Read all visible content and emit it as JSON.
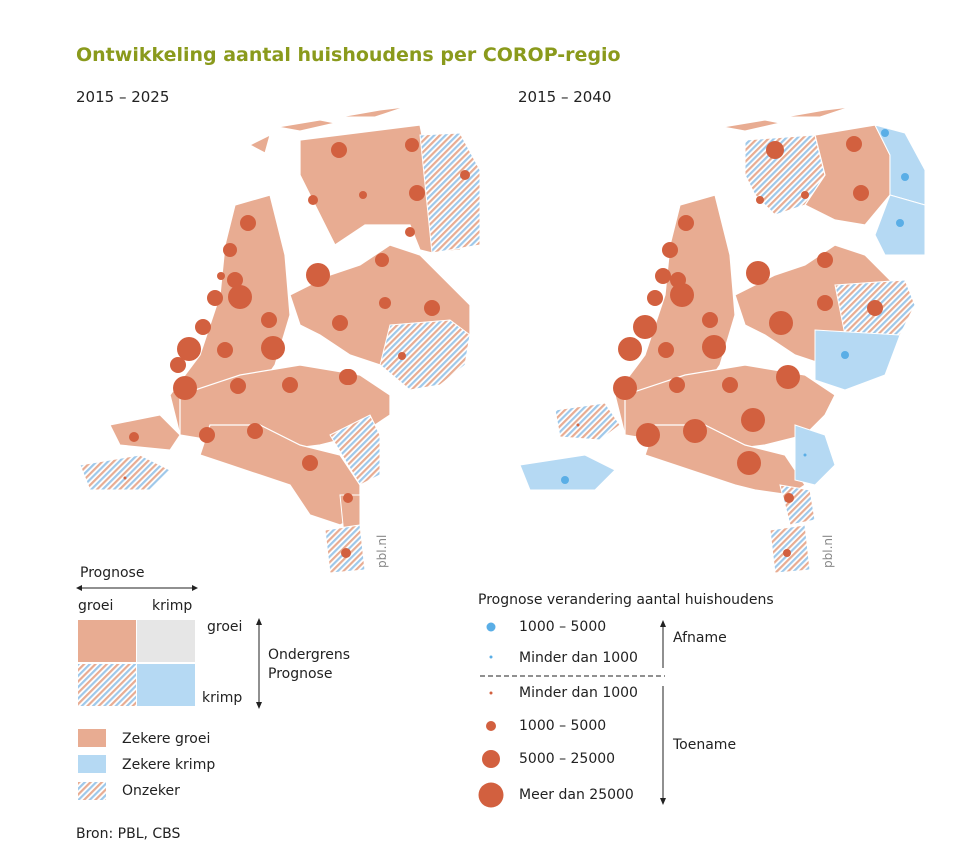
{
  "title": "Ontwikkeling aantal huishoudens per COROP-regio",
  "maps": [
    {
      "period": "2015 – 2025",
      "credit": "pbl.nl"
    },
    {
      "period": "2015 – 2040",
      "credit": "pbl.nl"
    }
  ],
  "colors": {
    "growth": "#e8ac92",
    "shrink": "#b5d9f3",
    "neutral": "#e6e6e6",
    "dot_increase": "#d2603f",
    "dot_decrease": "#5aaee6"
  },
  "legend_matrix": {
    "axis_label": "Prognose",
    "col_left": "groei",
    "col_right": "krimp",
    "row_top": "groei",
    "row_bottom": "krimp",
    "side_label_line1": "Ondergrens",
    "side_label_line2": "Prognose"
  },
  "legend_classes": [
    {
      "label": "Zekere groei",
      "style": "growth"
    },
    {
      "label": "Zekere krimp",
      "style": "shrink"
    },
    {
      "label": "Onzeker",
      "style": "hatched"
    }
  ],
  "legend_dots": {
    "title": "Prognose verandering aantal huishoudens",
    "decrease_label": "Afname",
    "increase_label": "Toename",
    "items": [
      {
        "label": "1000 – 5000",
        "kind": "decrease"
      },
      {
        "label": "Minder dan 1000",
        "kind": "decrease"
      },
      {
        "label": "Minder dan 1000",
        "kind": "increase"
      },
      {
        "label": "1000 – 5000",
        "kind": "increase"
      },
      {
        "label": "5000 – 25000",
        "kind": "increase"
      },
      {
        "label": "Meer dan 25000",
        "kind": "increase"
      }
    ]
  },
  "source": "Bron: PBL, CBS"
}
